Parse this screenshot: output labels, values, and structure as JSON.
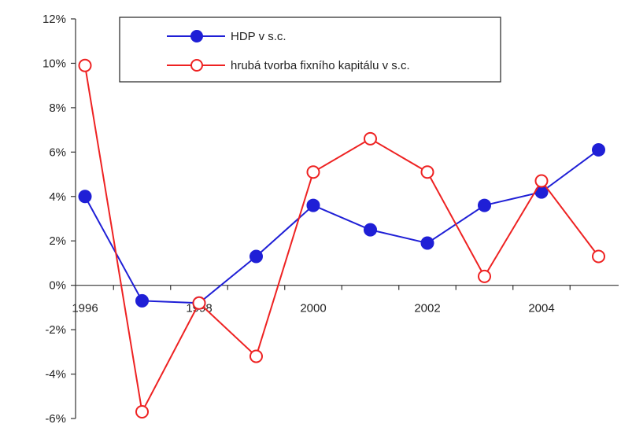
{
  "chart_data": {
    "type": "line",
    "x": [
      1996,
      1997,
      1998,
      1999,
      2000,
      2001,
      2002,
      2003,
      2004,
      2005
    ],
    "series": [
      {
        "name": "HDP v s.c.",
        "values": [
          4.0,
          -0.7,
          -0.8,
          1.3,
          3.6,
          2.5,
          1.9,
          3.6,
          4.2,
          6.1
        ],
        "color": "#1f1fd6",
        "marker": "filled-circle"
      },
      {
        "name": "hrubá tvorba fixního kapitálu v s.c.",
        "values": [
          9.9,
          -5.7,
          -0.8,
          -3.2,
          5.1,
          6.6,
          5.1,
          0.4,
          4.7,
          1.3
        ],
        "color": "#ee2222",
        "marker": "open-circle"
      }
    ],
    "ylim": [
      -6,
      12
    ],
    "y_ticks": [
      12,
      10,
      8,
      6,
      4,
      2,
      0,
      -2,
      -4,
      -6
    ],
    "y_tick_labels": [
      "12%",
      "10%",
      "8%",
      "6%",
      "4%",
      "2%",
      "0%",
      "-2%",
      "-4%",
      "-6%"
    ],
    "x_tick_labels": [
      {
        "value": 1996,
        "label": "1996"
      },
      {
        "value": 1998,
        "label": "1998"
      },
      {
        "value": 2000,
        "label": "2000"
      },
      {
        "value": 2002,
        "label": "2002"
      },
      {
        "value": 2004,
        "label": "2004"
      }
    ],
    "grid": false,
    "legend": "top-center",
    "title": "",
    "xlabel": "",
    "ylabel": ""
  }
}
